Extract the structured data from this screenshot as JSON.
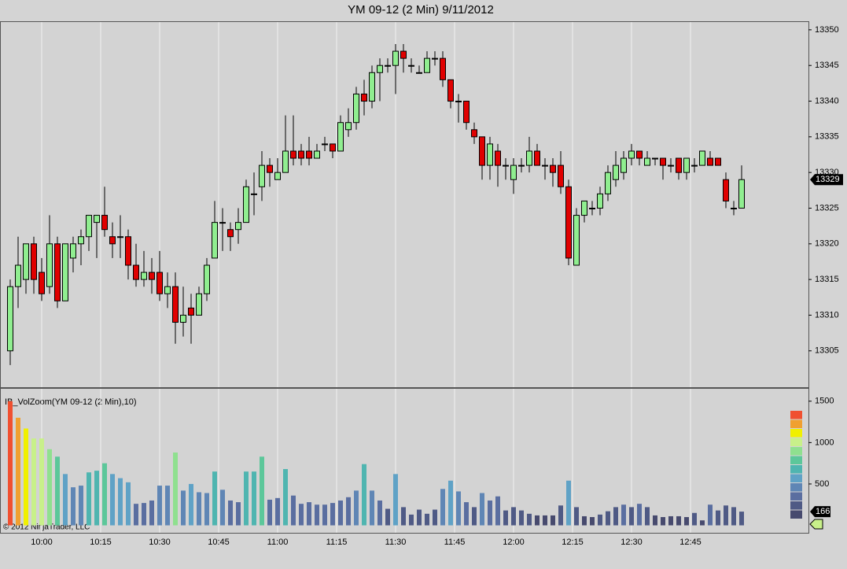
{
  "chart_data": [
    {
      "type": "candlestick",
      "title": "YM 09-12 (2 Min)  9/11/2012",
      "x": [
        592,
        594,
        596,
        598,
        600,
        602,
        604,
        606,
        608,
        610,
        612,
        614,
        616,
        618,
        620,
        622,
        624,
        626,
        628,
        630,
        632,
        634,
        636,
        638,
        640,
        642,
        644,
        646,
        648,
        650,
        652,
        654,
        656,
        658,
        660,
        662,
        664,
        666,
        668,
        670,
        672,
        674,
        676,
        678,
        680,
        682,
        684,
        686,
        688,
        690,
        692,
        694,
        696,
        698,
        700,
        702,
        704,
        706,
        708,
        710,
        712,
        714,
        716,
        718,
        720,
        722,
        724,
        726,
        728,
        730,
        732,
        734,
        736,
        738,
        740,
        742,
        744,
        746,
        748,
        750,
        752,
        754,
        756,
        758,
        760,
        762,
        764,
        766,
        768,
        770,
        772,
        774,
        776,
        778
      ],
      "open": [
        13305,
        13314,
        13315,
        13320,
        13316,
        13314,
        13320,
        13312,
        13318,
        13320,
        13321,
        13323,
        13324,
        13321,
        13321,
        13321,
        13317,
        13315,
        13316,
        13316,
        13313,
        13314,
        13309,
        13311,
        13310,
        13313,
        13318,
        13323,
        13322,
        13322,
        13323,
        13327,
        13328,
        13331,
        13329,
        13330,
        13333,
        13333,
        13333,
        13332,
        13334,
        13334,
        13333,
        13336,
        13337,
        13341,
        13340,
        13344,
        13345,
        13345,
        13347,
        13345,
        13344,
        13344,
        13346,
        13346,
        13343,
        13340,
        13340,
        13336,
        13335,
        13331,
        13333,
        13331,
        13329,
        13331,
        13331,
        13333,
        13331,
        13331,
        13331,
        13328,
        13317,
        13324,
        13325,
        13325,
        13327,
        13329,
        13330,
        13332,
        13333,
        13331,
        13332,
        13332,
        13331,
        13332,
        13330,
        13331,
        13331,
        13332,
        13332,
        13329,
        13325,
        13325
      ],
      "high": [
        13315,
        13321,
        13320,
        13321,
        13318,
        13324,
        13321,
        13320,
        13321,
        13322,
        13324,
        13324,
        13328,
        13323,
        13324,
        13322,
        13320,
        13319,
        13318,
        13319,
        13316,
        13316,
        13314,
        13313,
        13314,
        13318,
        13326,
        13325,
        13323,
        13325,
        13329,
        13330,
        13333,
        13332,
        13332,
        13338,
        13338,
        13334,
        13335,
        13334,
        13335,
        13334,
        13338,
        13339,
        13342,
        13343,
        13345,
        13346,
        13346,
        13348,
        13348,
        13346,
        13345,
        13347,
        13347,
        13347,
        13343,
        13341,
        13340,
        13337,
        13335,
        13335,
        13334,
        13332,
        13332,
        13332,
        13335,
        13334,
        13332,
        13332,
        13333,
        13329,
        13325,
        13326,
        13326,
        13328,
        13331,
        13333,
        13333,
        13334,
        13333,
        13333,
        13332,
        13332,
        13332,
        13332,
        13332,
        13332,
        13333,
        13333,
        13332,
        13330,
        13326,
        13331
      ],
      "low": [
        13303,
        13311,
        13313,
        13313,
        13312,
        13313,
        13311,
        13312,
        13316,
        13317,
        13319,
        13318,
        13321,
        13318,
        13318,
        13315,
        13314,
        13314,
        13313,
        13312,
        13311,
        13306,
        13307,
        13306,
        13310,
        13312,
        13318,
        13319,
        13319,
        13320,
        13323,
        13324,
        13326,
        13328,
        13329,
        13330,
        13331,
        13331,
        13331,
        13332,
        13333,
        13332,
        13333,
        13335,
        13336,
        13338,
        13339,
        13340,
        13344,
        13341,
        13344,
        13344,
        13344,
        13344,
        13345,
        13342,
        13339,
        13337,
        13336,
        13334,
        13329,
        13329,
        13328,
        13329,
        13327,
        13330,
        13330,
        13331,
        13329,
        13328,
        13327,
        13317,
        13317,
        13323,
        13324,
        13324,
        13326,
        13328,
        13329,
        13331,
        13331,
        13331,
        13331,
        13329,
        13330,
        13329,
        13329,
        13330,
        13331,
        13331,
        13331,
        13325,
        13324,
        13325
      ],
      "close": [
        13314,
        13317,
        13320,
        13315,
        13313,
        13320,
        13312,
        13320,
        13320,
        13321,
        13324,
        13324,
        13322,
        13320,
        13321,
        13317,
        13315,
        13316,
        13315,
        13313,
        13314,
        13309,
        13310,
        13310,
        13313,
        13317,
        13323,
        13323,
        13321,
        13323,
        13328,
        13327,
        13331,
        13330,
        13330,
        13333,
        13332,
        13332,
        13332,
        13333,
        13334,
        13333,
        13337,
        13337,
        13341,
        13340,
        13344,
        13345,
        13345,
        13347,
        13346,
        13345,
        13344,
        13346,
        13346,
        13343,
        13340,
        13340,
        13337,
        13335,
        13331,
        13334,
        13331,
        13331,
        13331,
        13331,
        13333,
        13331,
        13331,
        13330,
        13328,
        13318,
        13324,
        13326,
        13325,
        13327,
        13330,
        13331,
        13332,
        13333,
        13332,
        13332,
        13332,
        13331,
        13331,
        13330,
        13332,
        13331,
        13333,
        13331,
        13331,
        13326,
        13325,
        13329
      ],
      "up_color": "#90ee90",
      "down_color": "#e00000",
      "xlim": [
        589.4,
        795
      ],
      "xticks": [
        {
          "value": 600,
          "label": "10:00"
        },
        {
          "value": 615,
          "label": "10:15"
        },
        {
          "value": 630,
          "label": "10:30"
        },
        {
          "value": 645,
          "label": "10:45"
        },
        {
          "value": 660,
          "label": "11:00"
        },
        {
          "value": 675,
          "label": "11:15"
        },
        {
          "value": 690,
          "label": "11:30"
        },
        {
          "value": 705,
          "label": "11:45"
        },
        {
          "value": 720,
          "label": "12:00"
        },
        {
          "value": 735,
          "label": "12:15"
        },
        {
          "value": 750,
          "label": "12:30"
        },
        {
          "value": 765,
          "label": "12:45"
        }
      ],
      "ylim": [
        13299.9,
        13351.2
      ],
      "yticks": [
        13305,
        13310,
        13315,
        13320,
        13325,
        13330,
        13335,
        13340,
        13345,
        13350
      ],
      "grid": true
    },
    {
      "type": "bar",
      "title": "IB_VolZoom(YM 09-12 (2 Min),10)",
      "copyright": "© 2012 NinjaTrader, LLC",
      "values": [
        1500,
        1300,
        1170,
        1050,
        1050,
        920,
        830,
        620,
        460,
        480,
        640,
        660,
        750,
        620,
        570,
        520,
        260,
        270,
        300,
        480,
        480,
        880,
        420,
        500,
        400,
        390,
        650,
        430,
        300,
        280,
        650,
        650,
        830,
        310,
        330,
        680,
        360,
        260,
        280,
        250,
        250,
        270,
        300,
        340,
        420,
        740,
        420,
        300,
        200,
        620,
        220,
        130,
        190,
        140,
        190,
        440,
        540,
        410,
        280,
        220,
        390,
        300,
        350,
        180,
        220,
        180,
        140,
        120,
        120,
        120,
        240,
        540,
        220,
        110,
        100,
        130,
        170,
        220,
        250,
        220,
        260,
        220,
        120,
        100,
        110,
        110,
        100,
        150,
        60,
        250,
        180,
        240,
        220,
        166
      ],
      "palette": [
        "#474a6e",
        "#4f5a85",
        "#5a6ea0",
        "#5f86b5",
        "#5fa2c6",
        "#4fb5b0",
        "#5cc79a",
        "#8fe08f",
        "#c8f08a",
        "#f0f000",
        "#f0a030",
        "#f05030"
      ],
      "ylim": [
        -90,
        1650
      ],
      "yticks": [
        500,
        1000,
        1500
      ]
    }
  ]
}
